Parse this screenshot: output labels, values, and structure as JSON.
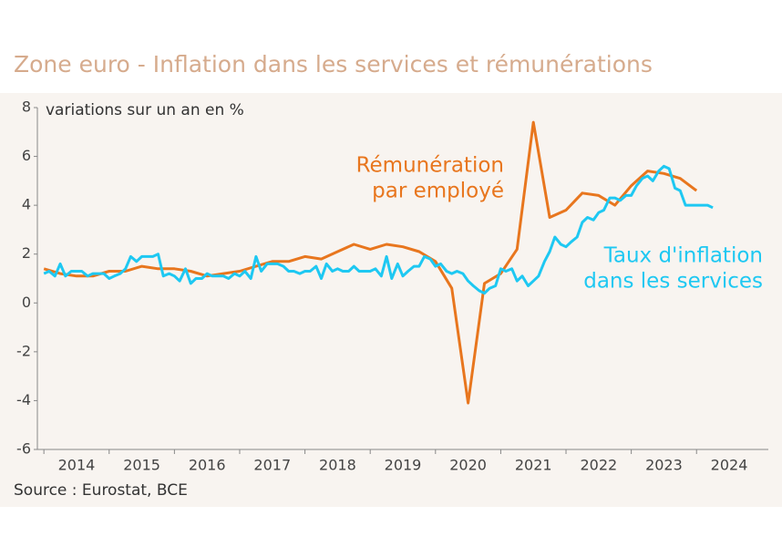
{
  "chart_data": {
    "type": "line",
    "title": "Zone euro - Inflation dans les services et rémunérations",
    "y_label": "variations sur un an en %",
    "source": "Source : Eurostat, BCE",
    "xlim": [
      2013.9,
      2025.1
    ],
    "xticks": [
      {
        "value": 2014,
        "label": "2014"
      },
      {
        "value": 2015,
        "label": "2015"
      },
      {
        "value": 2016,
        "label": "2016"
      },
      {
        "value": 2017,
        "label": "2017"
      },
      {
        "value": 2018,
        "label": "2018"
      },
      {
        "value": 2019,
        "label": "2019"
      },
      {
        "value": 2020,
        "label": "2020"
      },
      {
        "value": 2021,
        "label": "2021"
      },
      {
        "value": 2022,
        "label": "2022"
      },
      {
        "value": 2023,
        "label": "2023"
      },
      {
        "value": 2024,
        "label": "2024"
      }
    ],
    "ylim": [
      -6,
      8
    ],
    "yticks": [
      -6,
      -4,
      -2,
      0,
      2,
      4,
      6,
      8
    ],
    "grid": false,
    "series": [
      {
        "name": [
          "Rémunération",
          "par employé"
        ],
        "color": "#e8761e",
        "x": [
          2014.0,
          2014.25,
          2014.5,
          2014.75,
          2015.0,
          2015.25,
          2015.5,
          2015.75,
          2016.0,
          2016.25,
          2016.5,
          2016.75,
          2017.0,
          2017.25,
          2017.5,
          2017.75,
          2018.0,
          2018.25,
          2018.5,
          2018.75,
          2019.0,
          2019.25,
          2019.5,
          2019.75,
          2020.0,
          2020.25,
          2020.5,
          2020.75,
          2021.0,
          2021.25,
          2021.5,
          2021.75,
          2022.0,
          2022.25,
          2022.5,
          2022.75,
          2023.0,
          2023.25,
          2023.5,
          2023.75,
          2024.0
        ],
        "values": [
          1.4,
          1.2,
          1.1,
          1.1,
          1.3,
          1.3,
          1.5,
          1.4,
          1.4,
          1.3,
          1.1,
          1.2,
          1.3,
          1.5,
          1.7,
          1.7,
          1.9,
          1.8,
          2.1,
          2.4,
          2.2,
          2.4,
          2.3,
          2.1,
          1.7,
          0.6,
          -4.1,
          0.8,
          1.2,
          2.2,
          7.4,
          3.5,
          3.8,
          4.5,
          4.4,
          4.0,
          4.8,
          5.4,
          5.3,
          5.1,
          4.6
        ]
      },
      {
        "name": [
          "Taux d'inflation",
          "dans les services"
        ],
        "color": "#1ec8f2",
        "x": [
          2014.0,
          2014.08,
          2014.17,
          2014.25,
          2014.33,
          2014.42,
          2014.5,
          2014.58,
          2014.67,
          2014.75,
          2014.83,
          2014.92,
          2015.0,
          2015.08,
          2015.17,
          2015.25,
          2015.33,
          2015.42,
          2015.5,
          2015.58,
          2015.67,
          2015.75,
          2015.83,
          2015.92,
          2016.0,
          2016.08,
          2016.17,
          2016.25,
          2016.33,
          2016.42,
          2016.5,
          2016.58,
          2016.67,
          2016.75,
          2016.83,
          2016.92,
          2017.0,
          2017.08,
          2017.17,
          2017.25,
          2017.33,
          2017.42,
          2017.5,
          2017.58,
          2017.67,
          2017.75,
          2017.83,
          2017.92,
          2018.0,
          2018.08,
          2018.17,
          2018.25,
          2018.33,
          2018.42,
          2018.5,
          2018.58,
          2018.67,
          2018.75,
          2018.83,
          2018.92,
          2019.0,
          2019.08,
          2019.17,
          2019.25,
          2019.33,
          2019.42,
          2019.5,
          2019.58,
          2019.67,
          2019.75,
          2019.83,
          2019.92,
          2020.0,
          2020.08,
          2020.17,
          2020.25,
          2020.33,
          2020.42,
          2020.5,
          2020.58,
          2020.67,
          2020.75,
          2020.83,
          2020.92,
          2021.0,
          2021.08,
          2021.17,
          2021.25,
          2021.33,
          2021.42,
          2021.5,
          2021.58,
          2021.67,
          2021.75,
          2021.83,
          2021.92,
          2022.0,
          2022.08,
          2022.17,
          2022.25,
          2022.33,
          2022.42,
          2022.5,
          2022.58,
          2022.67,
          2022.75,
          2022.83,
          2022.92,
          2023.0,
          2023.08,
          2023.17,
          2023.25,
          2023.33,
          2023.42,
          2023.5,
          2023.58,
          2023.67,
          2023.75,
          2023.83,
          2023.92,
          2024.0,
          2024.08,
          2024.17,
          2024.25
        ],
        "values": [
          1.2,
          1.3,
          1.1,
          1.6,
          1.1,
          1.3,
          1.3,
          1.3,
          1.1,
          1.2,
          1.2,
          1.2,
          1.0,
          1.1,
          1.2,
          1.4,
          1.9,
          1.7,
          1.9,
          1.9,
          1.9,
          2.0,
          1.1,
          1.2,
          1.1,
          0.9,
          1.4,
          0.8,
          1.0,
          1.0,
          1.2,
          1.1,
          1.1,
          1.1,
          1.0,
          1.2,
          1.1,
          1.3,
          1.0,
          1.9,
          1.3,
          1.6,
          1.6,
          1.6,
          1.5,
          1.3,
          1.3,
          1.2,
          1.3,
          1.3,
          1.5,
          1.0,
          1.6,
          1.3,
          1.4,
          1.3,
          1.3,
          1.5,
          1.3,
          1.3,
          1.3,
          1.4,
          1.1,
          1.9,
          1.0,
          1.6,
          1.1,
          1.3,
          1.5,
          1.5,
          1.9,
          1.8,
          1.5,
          1.6,
          1.3,
          1.2,
          1.3,
          1.2,
          0.9,
          0.7,
          0.5,
          0.4,
          0.6,
          0.7,
          1.4,
          1.3,
          1.4,
          0.9,
          1.1,
          0.7,
          0.9,
          1.1,
          1.7,
          2.1,
          2.7,
          2.4,
          2.3,
          2.5,
          2.7,
          3.3,
          3.5,
          3.4,
          3.7,
          3.8,
          4.3,
          4.3,
          4.2,
          4.4,
          4.4,
          4.8,
          5.1,
          5.2,
          5.0,
          5.4,
          5.6,
          5.5,
          4.7,
          4.6,
          4.0,
          4.0,
          4.0,
          4.0,
          4.0,
          3.9
        ]
      }
    ]
  }
}
